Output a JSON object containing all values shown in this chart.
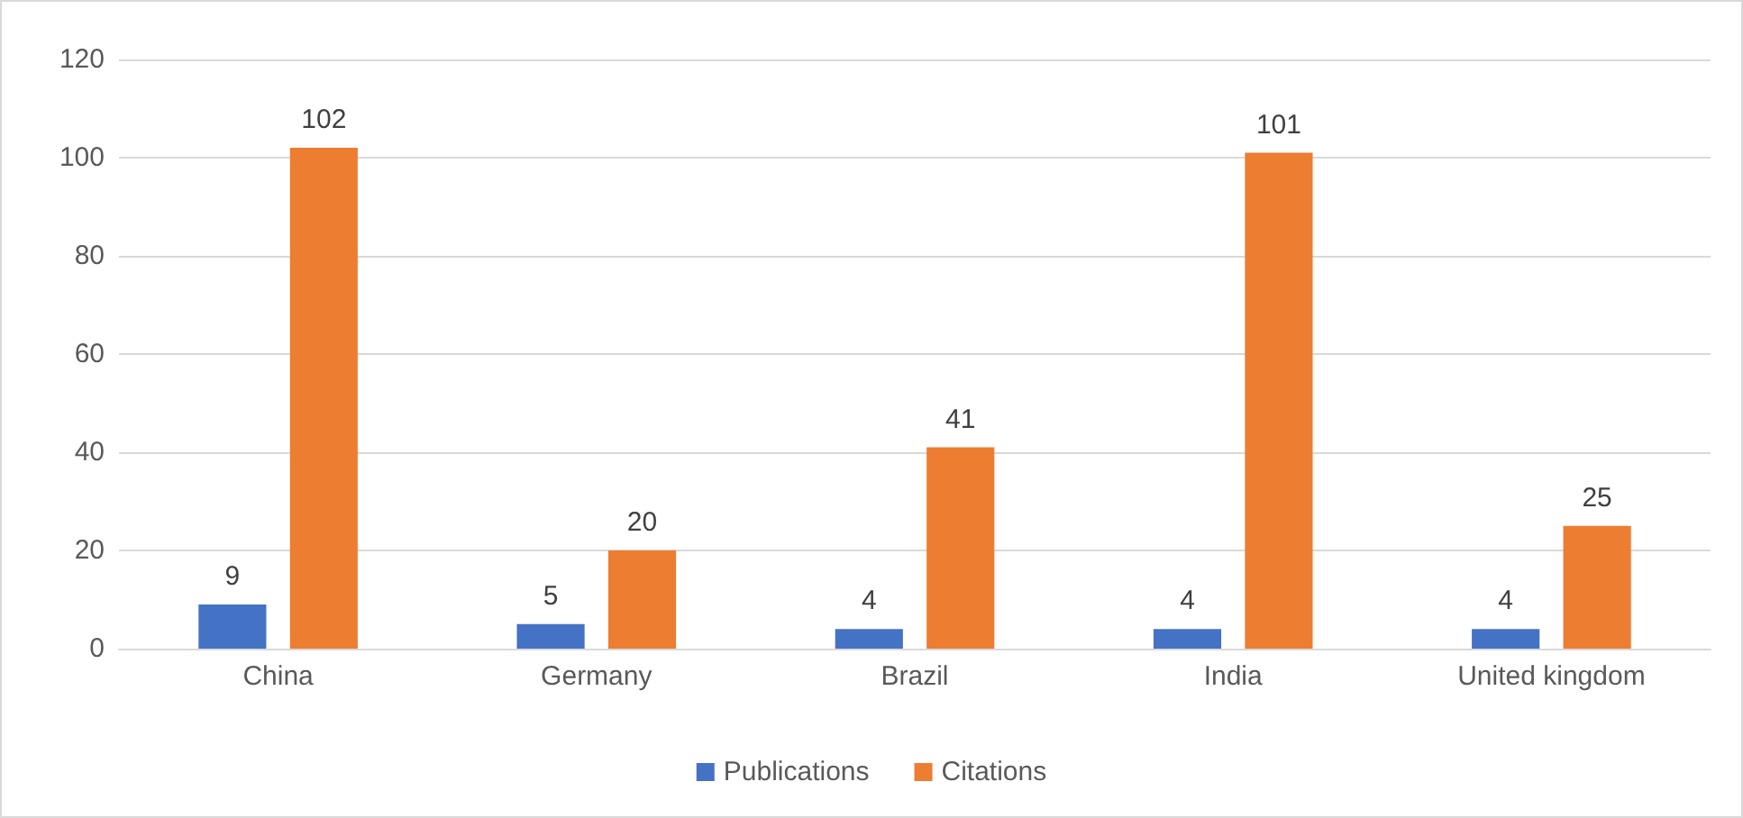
{
  "chart_data": {
    "type": "bar",
    "categories": [
      "China",
      "Germany",
      "Brazil",
      "India",
      "United kingdom"
    ],
    "series": [
      {
        "name": "Publications",
        "color": "#4472c4",
        "values": [
          9,
          5,
          4,
          4,
          4
        ]
      },
      {
        "name": "Citations",
        "color": "#ed7d31",
        "values": [
          102,
          20,
          41,
          101,
          25
        ]
      }
    ],
    "ylim": [
      0,
      120
    ],
    "yticks": [
      0,
      20,
      40,
      60,
      80,
      100,
      120
    ],
    "grid": "y",
    "legend": "bottom",
    "data_labels": true
  }
}
